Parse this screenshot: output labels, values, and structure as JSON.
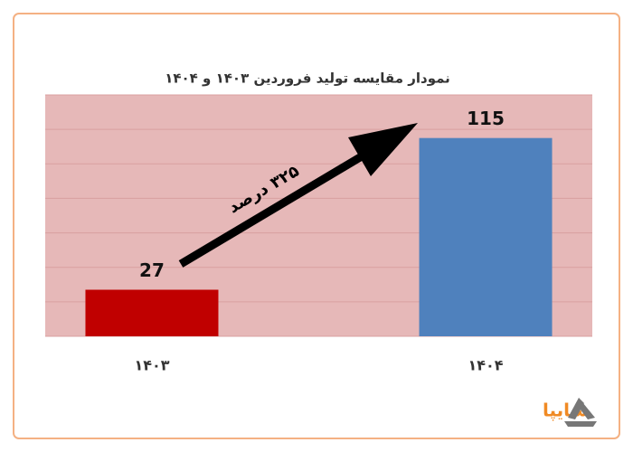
{
  "chart_data": {
    "type": "bar",
    "title": "نمودار  مقایسه تولید فروردین ۱۴۰۳ و ۱۴۰۴",
    "categories": [
      "۱۴۰۳",
      "۱۴۰۴"
    ],
    "values": [
      27,
      115
    ],
    "colors": [
      "#c00000",
      "#4f81bd"
    ],
    "ylim": [
      0,
      140
    ],
    "yticks": [
      0,
      20,
      40,
      60,
      80,
      100,
      120,
      140
    ],
    "grid": true,
    "show_tick_labels": false,
    "annotation": "۳۲۵ درصد",
    "logo": "سایپا"
  }
}
